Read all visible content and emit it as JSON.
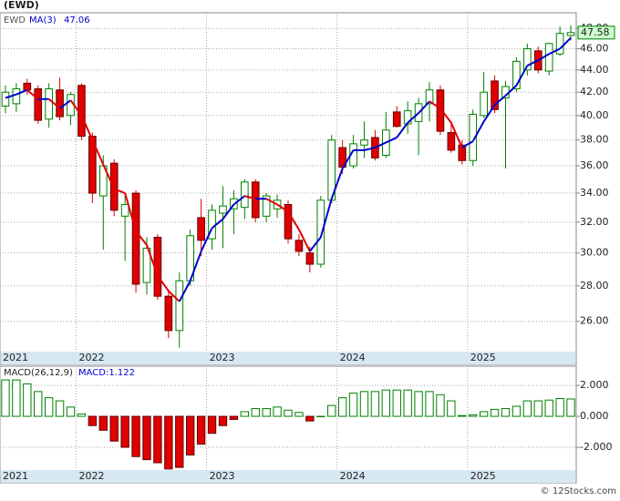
{
  "chart_data": [
    {
      "type": "candlestick",
      "title": "(EWD)",
      "categories": [
        "2021",
        null,
        null,
        null,
        null,
        null,
        null,
        "2022",
        null,
        null,
        null,
        null,
        null,
        null,
        null,
        null,
        null,
        null,
        null,
        "2023",
        null,
        null,
        null,
        null,
        null,
        null,
        null,
        null,
        null,
        null,
        null,
        "2024",
        null,
        null,
        null,
        null,
        null,
        null,
        null,
        null,
        null,
        null,
        null,
        "2025",
        null,
        null,
        null,
        null,
        null,
        null,
        null,
        null,
        null
      ],
      "series": [
        {
          "name": "EWD",
          "up_color": "#008000",
          "down_color": "#e00000",
          "open": [
            40.8,
            41.0,
            42.8,
            42.3,
            39.7,
            42.2,
            40.0,
            42.6,
            38.3,
            33.8,
            36.2,
            32.4,
            34.0,
            28.2,
            31.0,
            27.4,
            25.5,
            28.3,
            32.3,
            30.9,
            32.6,
            32.9,
            33.0,
            34.8,
            32.4,
            32.9,
            33.2,
            30.8,
            30.0,
            29.3,
            33.5,
            37.4,
            36.0,
            37.6,
            38.2,
            36.8,
            40.3,
            39.3,
            39.5,
            41.0,
            42.2,
            38.6,
            37.6,
            36.4,
            40.0,
            43.0,
            41.5,
            42.3,
            44.0,
            45.8,
            43.9,
            45.5,
            47.3
          ],
          "high": [
            42.6,
            42.8,
            43.2,
            42.6,
            42.8,
            43.3,
            42.0,
            42.8,
            38.6,
            36.8,
            36.5,
            33.8,
            34.2,
            31.0,
            31.2,
            27.8,
            28.8,
            31.5,
            33.6,
            33.2,
            34.5,
            34.2,
            35.0,
            35.0,
            34.0,
            33.9,
            33.5,
            31.2,
            30.4,
            33.8,
            38.4,
            38.0,
            38.4,
            39.5,
            38.8,
            40.3,
            40.8,
            41.2,
            41.5,
            42.9,
            42.6,
            39.5,
            38.0,
            40.5,
            43.8,
            43.5,
            43.0,
            45.2,
            46.5,
            46.2,
            46.6,
            48.2,
            48.3
          ],
          "low": [
            40.2,
            40.3,
            41.8,
            39.3,
            39.0,
            39.6,
            39.2,
            38.0,
            33.3,
            30.2,
            32.4,
            29.5,
            27.6,
            27.5,
            27.2,
            25.1,
            24.6,
            28.0,
            29.8,
            30.2,
            30.3,
            31.2,
            32.2,
            32.0,
            32.0,
            32.3,
            30.6,
            29.8,
            28.8,
            29.1,
            33.3,
            35.4,
            35.8,
            36.6,
            36.4,
            36.6,
            39.0,
            38.5,
            36.8,
            39.5,
            38.4,
            37.0,
            36.1,
            36.0,
            39.8,
            40.2,
            35.8,
            42.0,
            43.5,
            43.7,
            43.5,
            45.3,
            46.8
          ],
          "close": [
            42.0,
            42.3,
            42.2,
            39.6,
            42.3,
            39.9,
            41.8,
            38.3,
            34.0,
            36.0,
            32.8,
            33.2,
            28.1,
            30.3,
            27.4,
            25.5,
            28.3,
            31.1,
            30.8,
            32.8,
            33.1,
            33.6,
            34.8,
            32.3,
            33.8,
            33.5,
            30.9,
            30.1,
            29.3,
            33.5,
            38.0,
            35.9,
            37.7,
            38.0,
            36.6,
            38.8,
            39.1,
            40.4,
            41.0,
            42.2,
            38.7,
            37.2,
            36.4,
            40.1,
            42.0,
            40.5,
            42.5,
            44.8,
            46.0,
            44.0,
            46.5,
            47.5,
            47.58
          ]
        }
      ],
      "ma": {
        "name": "MA(3)",
        "up_color": "#0000cc",
        "down_color": "#e00000",
        "values": [
          41.5,
          41.8,
          42.2,
          41.4,
          41.4,
          40.6,
          41.3,
          40.0,
          38.0,
          36.1,
          34.3,
          34.0,
          31.4,
          30.5,
          28.6,
          27.7,
          27.1,
          28.3,
          30.1,
          31.6,
          32.2,
          33.2,
          33.8,
          33.6,
          33.6,
          33.2,
          32.7,
          31.5,
          30.1,
          31.0,
          33.6,
          35.8,
          37.2,
          37.2,
          37.4,
          37.8,
          38.2,
          39.4,
          40.2,
          41.2,
          40.6,
          39.4,
          37.4,
          37.9,
          39.5,
          40.9,
          41.7,
          42.6,
          44.4,
          44.9,
          45.5,
          46.0,
          47.06
        ]
      },
      "ylim": [
        24.4,
        49.6
      ],
      "log_scale": true,
      "grid": true,
      "yticks": [
        {
          "value": 26,
          "label": "26.00"
        },
        {
          "value": 28,
          "label": "28.00"
        },
        {
          "value": 30,
          "label": "30.00"
        },
        {
          "value": 32,
          "label": "32.00"
        },
        {
          "value": 34,
          "label": "34.00"
        },
        {
          "value": 36,
          "label": "36.00"
        },
        {
          "value": 38,
          "label": "38.00"
        },
        {
          "value": 40,
          "label": "40.00"
        },
        {
          "value": 42,
          "label": "42.00"
        },
        {
          "value": 44,
          "label": "44.00"
        },
        {
          "value": 46,
          "label": "46.00"
        },
        {
          "value": 48,
          "label": "48.00"
        }
      ]
    },
    {
      "type": "bar",
      "title": "MACD(26,12,9)",
      "subtitle": "MACD:1.122",
      "categories": [
        "2021",
        null,
        null,
        null,
        null,
        null,
        null,
        "2022",
        null,
        null,
        null,
        null,
        null,
        null,
        null,
        null,
        null,
        null,
        null,
        "2023",
        null,
        null,
        null,
        null,
        null,
        null,
        null,
        null,
        null,
        null,
        null,
        "2024",
        null,
        null,
        null,
        null,
        null,
        null,
        null,
        null,
        null,
        null,
        null,
        "2025",
        null,
        null,
        null,
        null,
        null,
        null,
        null,
        null,
        null
      ],
      "values": [
        2.35,
        2.35,
        2.1,
        1.6,
        1.2,
        1.0,
        0.6,
        0.15,
        -0.6,
        -0.9,
        -1.6,
        -2.0,
        -2.6,
        -2.8,
        -3.0,
        -3.4,
        -3.3,
        -2.5,
        -1.8,
        -1.1,
        -0.6,
        -0.2,
        0.3,
        0.5,
        0.5,
        0.6,
        0.4,
        0.25,
        -0.3,
        0.0,
        0.7,
        1.2,
        1.5,
        1.6,
        1.6,
        1.7,
        1.7,
        1.7,
        1.6,
        1.6,
        1.4,
        1.0,
        0.05,
        0.1,
        0.3,
        0.45,
        0.5,
        0.65,
        1.0,
        1.0,
        1.05,
        1.15,
        1.122
      ],
      "up_color": "#008000",
      "down_color": "#e00000",
      "ylim": [
        -3.47,
        3.24
      ],
      "grid": true,
      "yticks": [
        {
          "value": -2,
          "label": "-2.000"
        },
        {
          "value": 0,
          "label": "0.000"
        },
        {
          "value": 2,
          "label": "2.000"
        }
      ]
    }
  ],
  "footer": "© 12Stocks.com"
}
